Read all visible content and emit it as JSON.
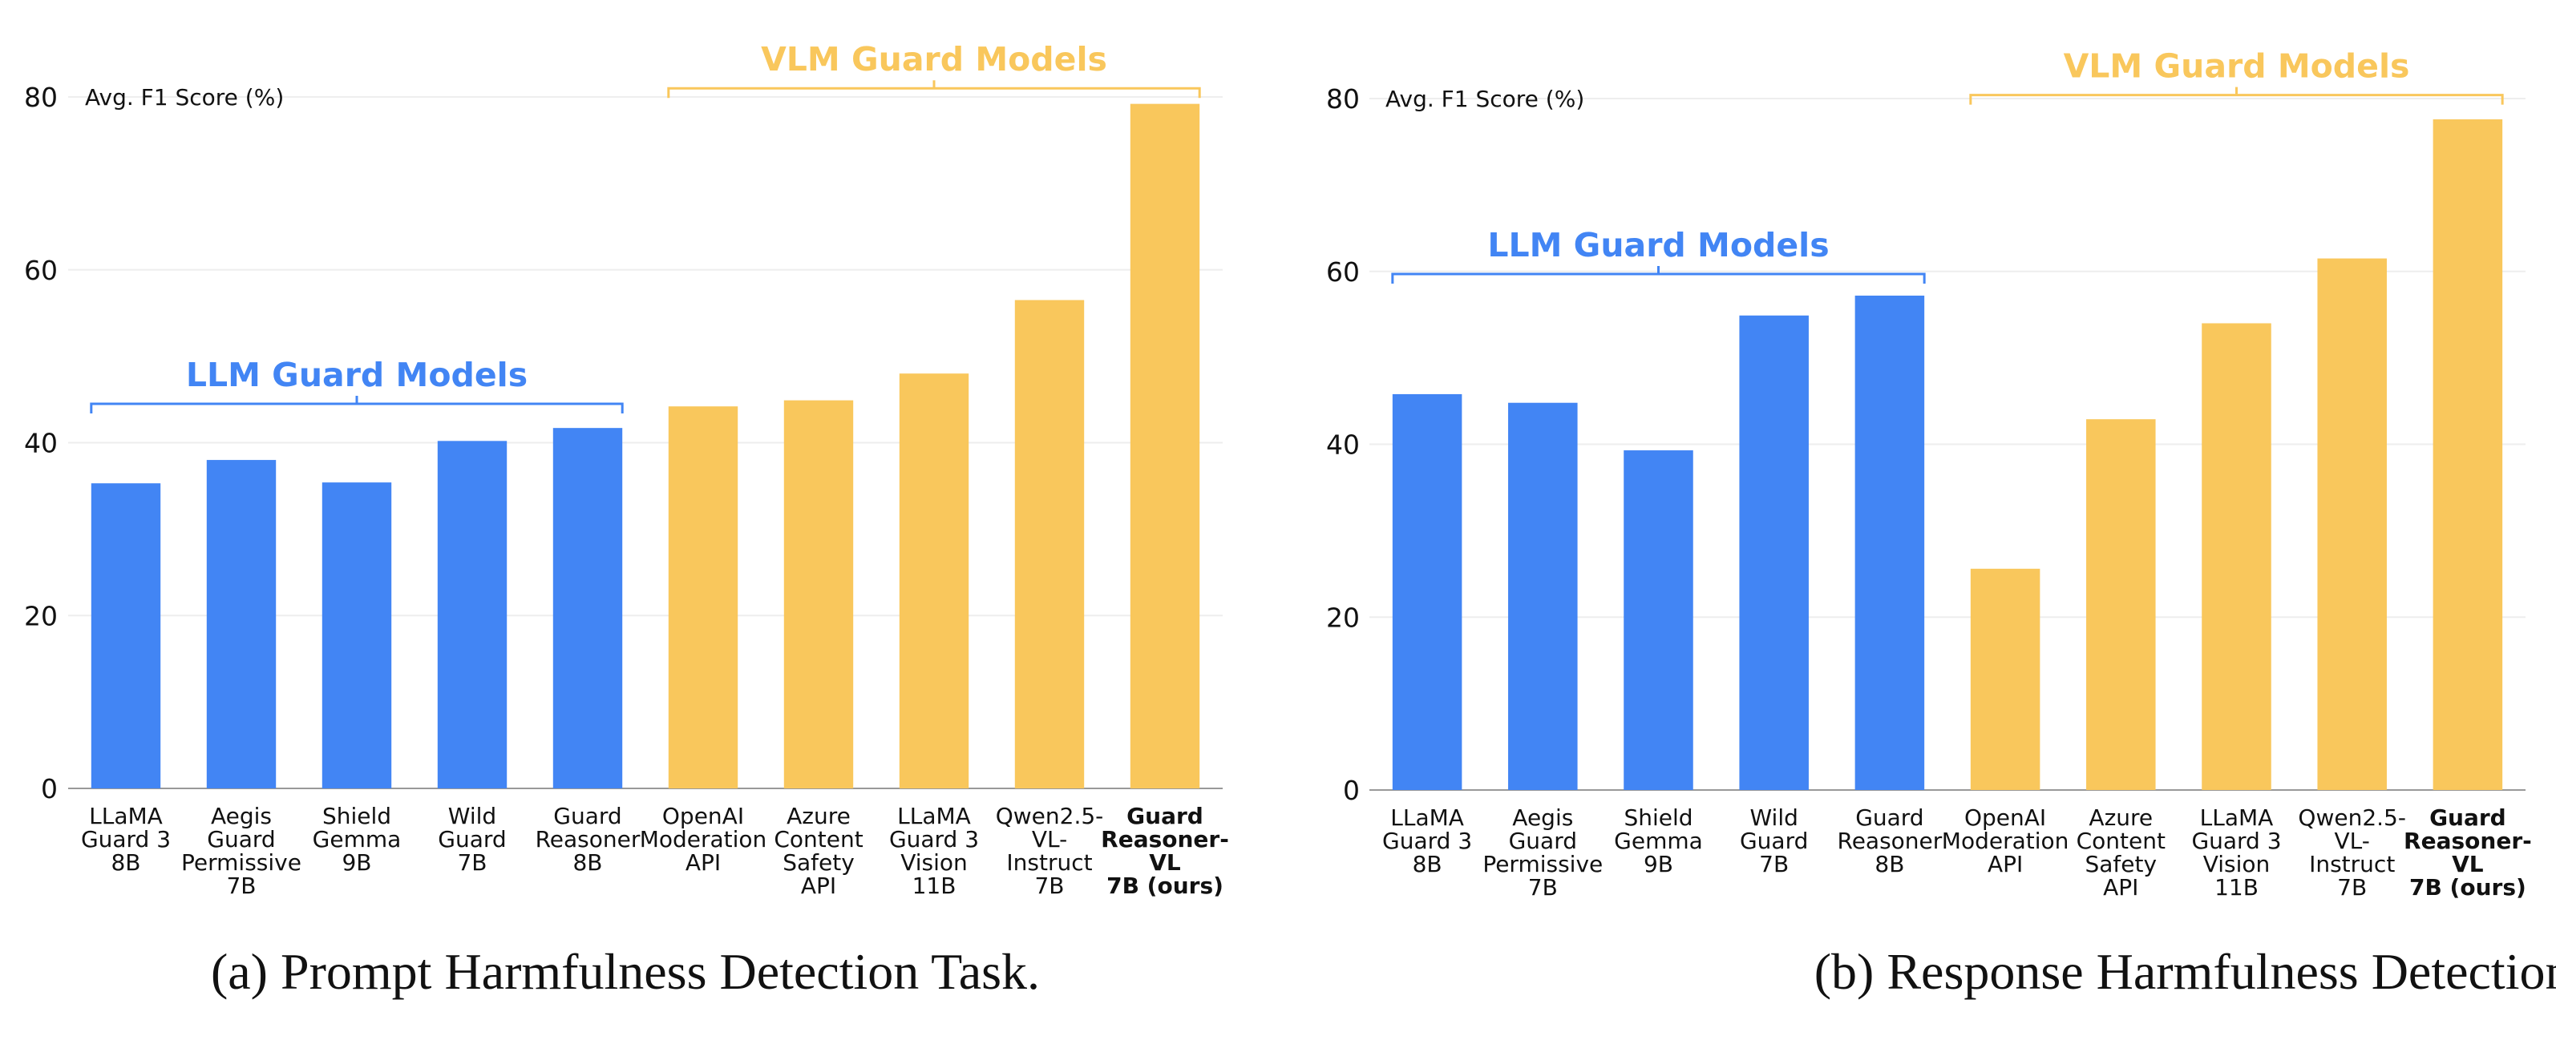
{
  "colors": {
    "llm": "#4285f4",
    "vlm": "#f9c75c",
    "grid": "#eeeeee",
    "axis": "#999999"
  },
  "chart_data": [
    {
      "type": "bar",
      "caption": "(a) Prompt Harmfulness Detection Task.",
      "ylabel": "Avg. F1 Score (%)",
      "ylim": [
        0,
        80
      ],
      "yticks": [
        "0",
        "20",
        "40",
        "60",
        "80"
      ],
      "grid": true,
      "categories": [
        [
          "LLaMA",
          "Guard 3",
          "8B"
        ],
        [
          "Aegis",
          "Guard",
          "Permissive",
          "7B"
        ],
        [
          "Shield",
          "Gemma",
          "9B"
        ],
        [
          "Wild",
          "Guard",
          "7B"
        ],
        [
          "Guard",
          "Reasoner",
          "8B"
        ],
        [
          "OpenAI",
          "Moderation",
          "API"
        ],
        [
          "Azure",
          "Content",
          "Safety",
          "API"
        ],
        [
          "LLaMA",
          "Guard 3",
          "Vision",
          "11B"
        ],
        [
          "Qwen2.5-",
          "VL-",
          "Instruct",
          "7B"
        ],
        [
          "Guard",
          "Reasoner-",
          "VL",
          "7B (ours)"
        ]
      ],
      "values": [
        35.3,
        38.0,
        35.4,
        40.2,
        41.7,
        44.2,
        44.9,
        48.0,
        56.5,
        79.2
      ],
      "groups": [
        {
          "label": "LLM Guard Models",
          "from": 0,
          "to": 4,
          "color": "llm",
          "at": 44.5
        },
        {
          "label": "VLM Guard Models",
          "from": 5,
          "to": 9,
          "color": "vlm",
          "at": 81.0
        }
      ]
    },
    {
      "type": "bar",
      "caption": "(b) Response Harmfulness Detection Task.",
      "ylabel": "Avg. F1 Score (%)",
      "ylim": [
        0,
        80
      ],
      "yticks": [
        "0",
        "20",
        "40",
        "60",
        "80"
      ],
      "grid": true,
      "categories": [
        [
          "LLaMA",
          "Guard 3",
          "8B"
        ],
        [
          "Aegis",
          "Guard",
          "Permissive",
          "7B"
        ],
        [
          "Shield",
          "Gemma",
          "9B"
        ],
        [
          "Wild",
          "Guard",
          "7B"
        ],
        [
          "Guard",
          "Reasoner",
          "8B"
        ],
        [
          "OpenAI",
          "Moderation",
          "API"
        ],
        [
          "Azure",
          "Content",
          "Safety",
          "API"
        ],
        [
          "LLaMA",
          "Guard 3",
          "Vision",
          "11B"
        ],
        [
          "Qwen2.5-",
          "VL-",
          "Instruct",
          "7B"
        ],
        [
          "Guard",
          "Reasoner-",
          "VL",
          "7B (ours)"
        ]
      ],
      "values": [
        45.8,
        44.8,
        39.3,
        54.9,
        57.2,
        25.6,
        42.9,
        54.0,
        61.5,
        77.6
      ],
      "groups": [
        {
          "label": "LLM Guard Models",
          "from": 0,
          "to": 4,
          "color": "llm",
          "at": 59.7
        },
        {
          "label": "VLM Guard Models",
          "from": 5,
          "to": 9,
          "color": "vlm",
          "at": 80.4
        }
      ]
    }
  ]
}
